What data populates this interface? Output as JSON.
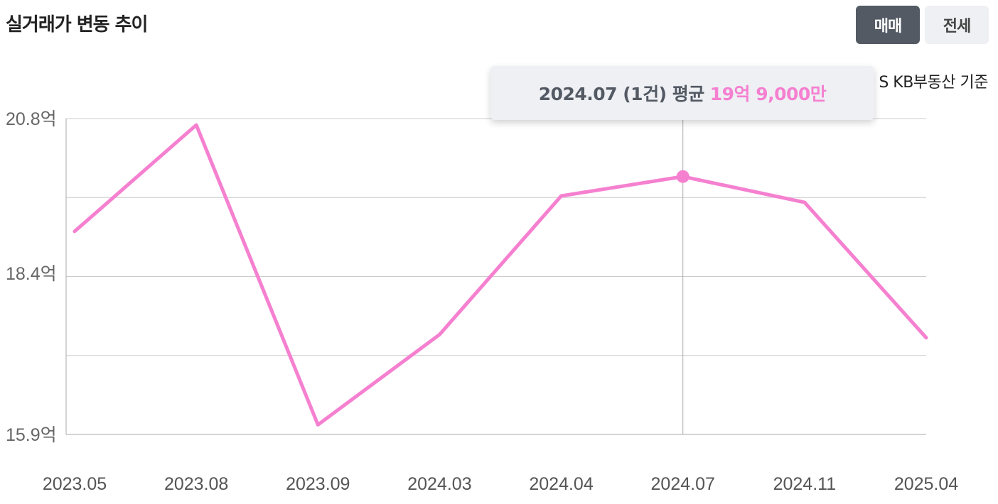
{
  "header": {
    "title": "실거래가 변동 추이",
    "toggle_sale": "매매",
    "toggle_jeonse": "전세",
    "source_text": "S KB부동산 기준"
  },
  "tooltip": {
    "prefix": "2024.07 (1건) 평균",
    "value": "19억 9,000만"
  },
  "colors": {
    "line": "#f580d0",
    "grid": "#cccccc",
    "active_toggle": "#535a64",
    "inactive_toggle": "#eef0f3"
  },
  "chart_data": {
    "type": "line",
    "x": [
      "2023.05",
      "2023.08",
      "2023.09",
      "2024.03",
      "2024.04",
      "2024.07",
      "2024.11",
      "2025.04"
    ],
    "values": [
      19.05,
      20.7,
      16.05,
      17.45,
      19.6,
      19.9,
      19.5,
      17.4
    ],
    "y_ticks": [
      {
        "value": 15.9,
        "label": "15.9억"
      },
      {
        "value": 18.4,
        "label": "18.4억"
      },
      {
        "value": 20.8,
        "label": "20.8억"
      }
    ],
    "ylim": [
      15.9,
      20.8
    ],
    "grid": true,
    "highlight_index": 5
  }
}
